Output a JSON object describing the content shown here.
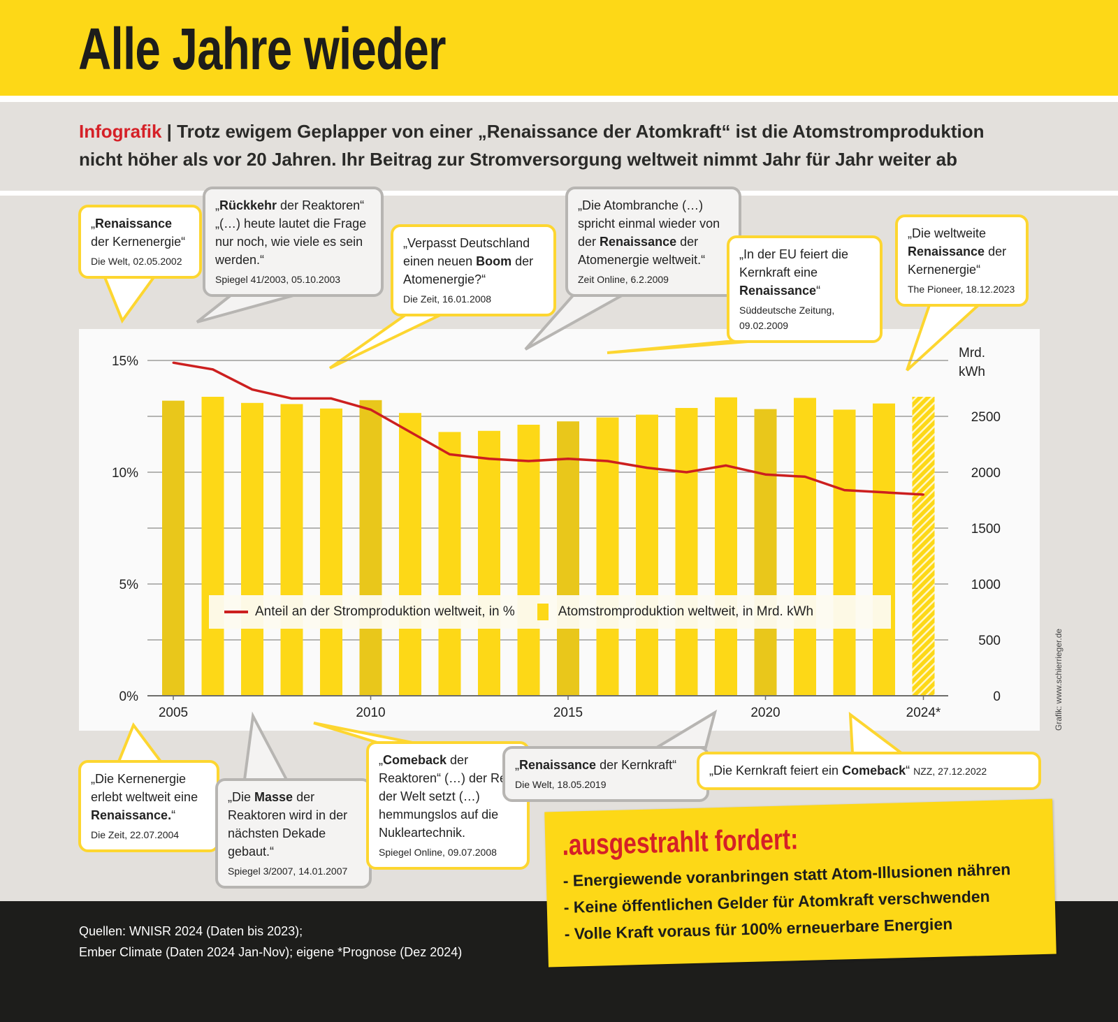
{
  "header": {
    "title": "Alle Jahre wieder"
  },
  "subtitle": {
    "label": "Infografik",
    "text_line1": " | Trotz ewigem Geplapper von einer „Renaissance der Atomkraft“ ist die Atomstromproduktion",
    "text_line2": "nicht höher als vor 20 Jahren. Ihr Beitrag zur Stromversorgung weltweit nimmt Jahr für Jahr weiter ab"
  },
  "colors": {
    "yellow": "#fdd817",
    "bar_dark": "#e9c71b",
    "line": "#cc1f1f",
    "accent_red": "#d52027",
    "footer": "#1d1d1b"
  },
  "callouts": [
    {
      "style": "yellow",
      "parts": [
        {
          "t": "„",
          "b": false
        },
        {
          "t": "Renaissance",
          "b": true
        },
        {
          "t": " der Kernenergie“",
          "b": false
        }
      ],
      "source": "Die Welt, 02.05.2002"
    },
    {
      "style": "gray",
      "parts": [
        {
          "t": "„",
          "b": false
        },
        {
          "t": "Rückkehr",
          "b": true
        },
        {
          "t": " der Reaktoren“ „(…) heute lautet die Frage nur noch, wie viele es sein werden.“",
          "b": false
        }
      ],
      "source": "Spiegel 41/2003, 05.10.2003"
    },
    {
      "style": "yellow",
      "parts": [
        {
          "t": "„Verpasst Deutschland einen neuen ",
          "b": false
        },
        {
          "t": "Boom",
          "b": true
        },
        {
          "t": " der Atomenergie?“",
          "b": false
        }
      ],
      "source": "Die Zeit, 16.01.2008"
    },
    {
      "style": "gray",
      "parts": [
        {
          "t": "„Die Atombranche (…) spricht einmal wieder von der ",
          "b": false
        },
        {
          "t": "Renaissance",
          "b": true
        },
        {
          "t": " der Atomenergie weltweit.“",
          "b": false
        }
      ],
      "source": "Zeit Online, 6.2.2009"
    },
    {
      "style": "yellow",
      "parts": [
        {
          "t": "„In der EU feiert die Kernkraft eine ",
          "b": false
        },
        {
          "t": "Renaissance",
          "b": true
        },
        {
          "t": "“",
          "b": false
        }
      ],
      "source": "Süddeutsche Zeitung, 09.02.2009"
    },
    {
      "style": "yellow",
      "parts": [
        {
          "t": "„Die weltweite ",
          "b": false
        },
        {
          "t": "Renaissance",
          "b": true
        },
        {
          "t": " der Kernenergie“",
          "b": false
        }
      ],
      "source": "The Pioneer, 18.12.2023"
    },
    {
      "style": "yellow",
      "parts": [
        {
          "t": "„Die Kernenergie erlebt weltweit eine ",
          "b": false
        },
        {
          "t": "Renaissance.",
          "b": true
        },
        {
          "t": "“",
          "b": false
        }
      ],
      "source": "Die Zeit, 22.07.2004"
    },
    {
      "style": "gray",
      "parts": [
        {
          "t": "„Die ",
          "b": false
        },
        {
          "t": "Masse",
          "b": true
        },
        {
          "t": " der Reaktoren wird in der nächsten Dekade gebaut.“",
          "b": false
        }
      ],
      "source": "Spiegel 3/2007, 14.01.2007"
    },
    {
      "style": "yellow",
      "parts": [
        {
          "t": "„",
          "b": false
        },
        {
          "t": "Comeback",
          "b": true
        },
        {
          "t": " der Reaktoren“ (…) der Rest der Welt setzt (…) hemmungslos auf die Nukleartechnik.",
          "b": false
        }
      ],
      "source": "Spiegel Online, 09.07.2008"
    },
    {
      "style": "gray",
      "parts": [
        {
          "t": "„",
          "b": false
        },
        {
          "t": "Renaissance",
          "b": true
        },
        {
          "t": " der Kernkraft“",
          "b": false
        }
      ],
      "source": "Die Welt, 18.05.2019"
    },
    {
      "style": "yellow",
      "parts": [
        {
          "t": "„Die Kernkraft feiert ein ",
          "b": false
        },
        {
          "t": "Comeback",
          "b": true
        },
        {
          "t": "“ ",
          "b": false
        }
      ],
      "source": "NZZ, 27.12.2022",
      "inline_source": true
    }
  ],
  "chart_data": {
    "type": "bar+line",
    "categories": [
      "2005",
      "2006",
      "2007",
      "2008",
      "2009",
      "2010",
      "2011",
      "2012",
      "2013",
      "2014",
      "2015",
      "2016",
      "2017",
      "2018",
      "2019",
      "2020",
      "2021",
      "2022",
      "2023",
      "2024*"
    ],
    "series": [
      {
        "name": "Atomstromproduktion weltweit, in Mrd. kWh",
        "type": "bar",
        "axis": "right",
        "values": [
          2640,
          2675,
          2620,
          2610,
          2570,
          2645,
          2530,
          2360,
          2370,
          2425,
          2455,
          2490,
          2515,
          2575,
          2670,
          2565,
          2665,
          2560,
          2615,
          2675
        ],
        "forecast_last": true
      },
      {
        "name": "Anteil an der Stromproduktion weltweit, in %",
        "type": "line",
        "axis": "left",
        "values": [
          14.9,
          14.6,
          13.7,
          13.3,
          13.3,
          12.8,
          11.8,
          10.8,
          10.6,
          10.5,
          10.6,
          10.5,
          10.2,
          10.0,
          10.3,
          9.9,
          9.8,
          9.2,
          9.1,
          9.0
        ]
      }
    ],
    "x_tick_labels": [
      "2005",
      "2010",
      "2015",
      "2020",
      "2024*"
    ],
    "x_tick_years": [
      2005,
      2010,
      2015,
      2020,
      2024
    ],
    "left_axis": {
      "ylim": [
        0,
        15
      ],
      "tick_labels": [
        "0%",
        "5%",
        "10%",
        "15%"
      ],
      "ticks": [
        0,
        5,
        10,
        15
      ]
    },
    "right_axis": {
      "ylim": [
        0,
        3000
      ],
      "label": "Mrd. kWh",
      "label_line1": "Mrd.",
      "label_line2": "kWh",
      "tick_labels": [
        "0",
        "500",
        "1000",
        "1500",
        "2000",
        "2500"
      ],
      "ticks": [
        0,
        500,
        1000,
        1500,
        2000,
        2500
      ]
    },
    "grid": true,
    "legend_placement": "bottom-center inside"
  },
  "legend": {
    "line_label": "Anteil an der Stromproduktion weltweit, in %",
    "bar_label": "Atomstromproduktion weltweit, in Mrd. kWh"
  },
  "credit": "Grafik: www.schierrieger.de",
  "demands": {
    "title": ".ausgestrahlt fordert:",
    "items": [
      "- Energiewende voranbringen statt Atom-Illusionen nähren",
      "- Keine öffentlichen Gelder für Atomkraft verschwenden",
      "- Volle Kraft voraus für 100% erneuerbare Energien"
    ]
  },
  "footer": {
    "sources_line1": "Quellen: WNISR 2024 (Daten bis 2023);",
    "sources_line2": "Ember Climate (Daten 2024 Jan-Nov); eigene *Prognose (Dez 2024)"
  }
}
